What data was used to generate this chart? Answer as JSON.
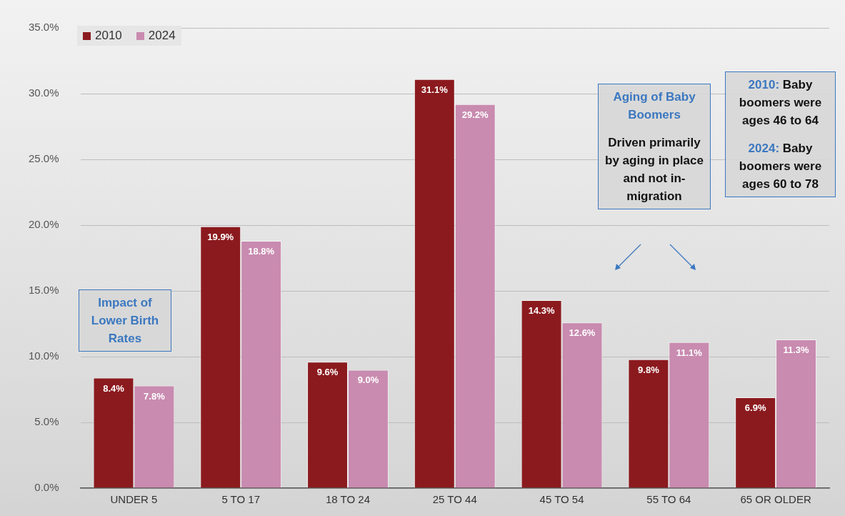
{
  "chart_data": {
    "type": "bar",
    "categories": [
      "UNDER 5",
      "5 TO 17",
      "18 TO 24",
      "25 TO 44",
      "45 TO 54",
      "55 TO 64",
      "65 OR OLDER"
    ],
    "series": [
      {
        "name": "2010",
        "color": "#8b1a1e",
        "values": [
          8.4,
          19.9,
          9.6,
          31.1,
          14.3,
          9.8,
          6.9
        ],
        "value_labels": [
          "8.4%",
          "19.9%",
          "9.6%",
          "31.1%",
          "14.3%",
          "9.8%",
          "6.9%"
        ]
      },
      {
        "name": "2024",
        "color": "#c98bb0",
        "values": [
          7.8,
          18.8,
          9.0,
          29.2,
          12.6,
          11.1,
          11.3
        ],
        "value_labels": [
          "7.8%",
          "18.8%",
          "9.0%",
          "29.2%",
          "12.6%",
          "11.1%",
          "11.3%"
        ]
      }
    ],
    "ylim": [
      0,
      35
    ],
    "yticks": [
      {
        "value": 0,
        "label": "0.0%"
      },
      {
        "value": 5,
        "label": "5.0%"
      },
      {
        "value": 10,
        "label": "10.0%"
      },
      {
        "value": 15,
        "label": "15.0%"
      },
      {
        "value": 20,
        "label": "20.0%"
      },
      {
        "value": 25,
        "label": "25.0%"
      },
      {
        "value": 30,
        "label": "30.0%"
      },
      {
        "value": 35,
        "label": "35.0%"
      }
    ],
    "grid": "y",
    "legend": "top left",
    "annotations": [
      "Impact of Lower Birth Rates",
      "Aging of Baby Boomers",
      "Driven primarily by aging in place and not in-migration",
      "2010: Baby boomers were ages 46 to 64",
      "2024: Baby boomers were ages 60 to 78"
    ]
  }
}
